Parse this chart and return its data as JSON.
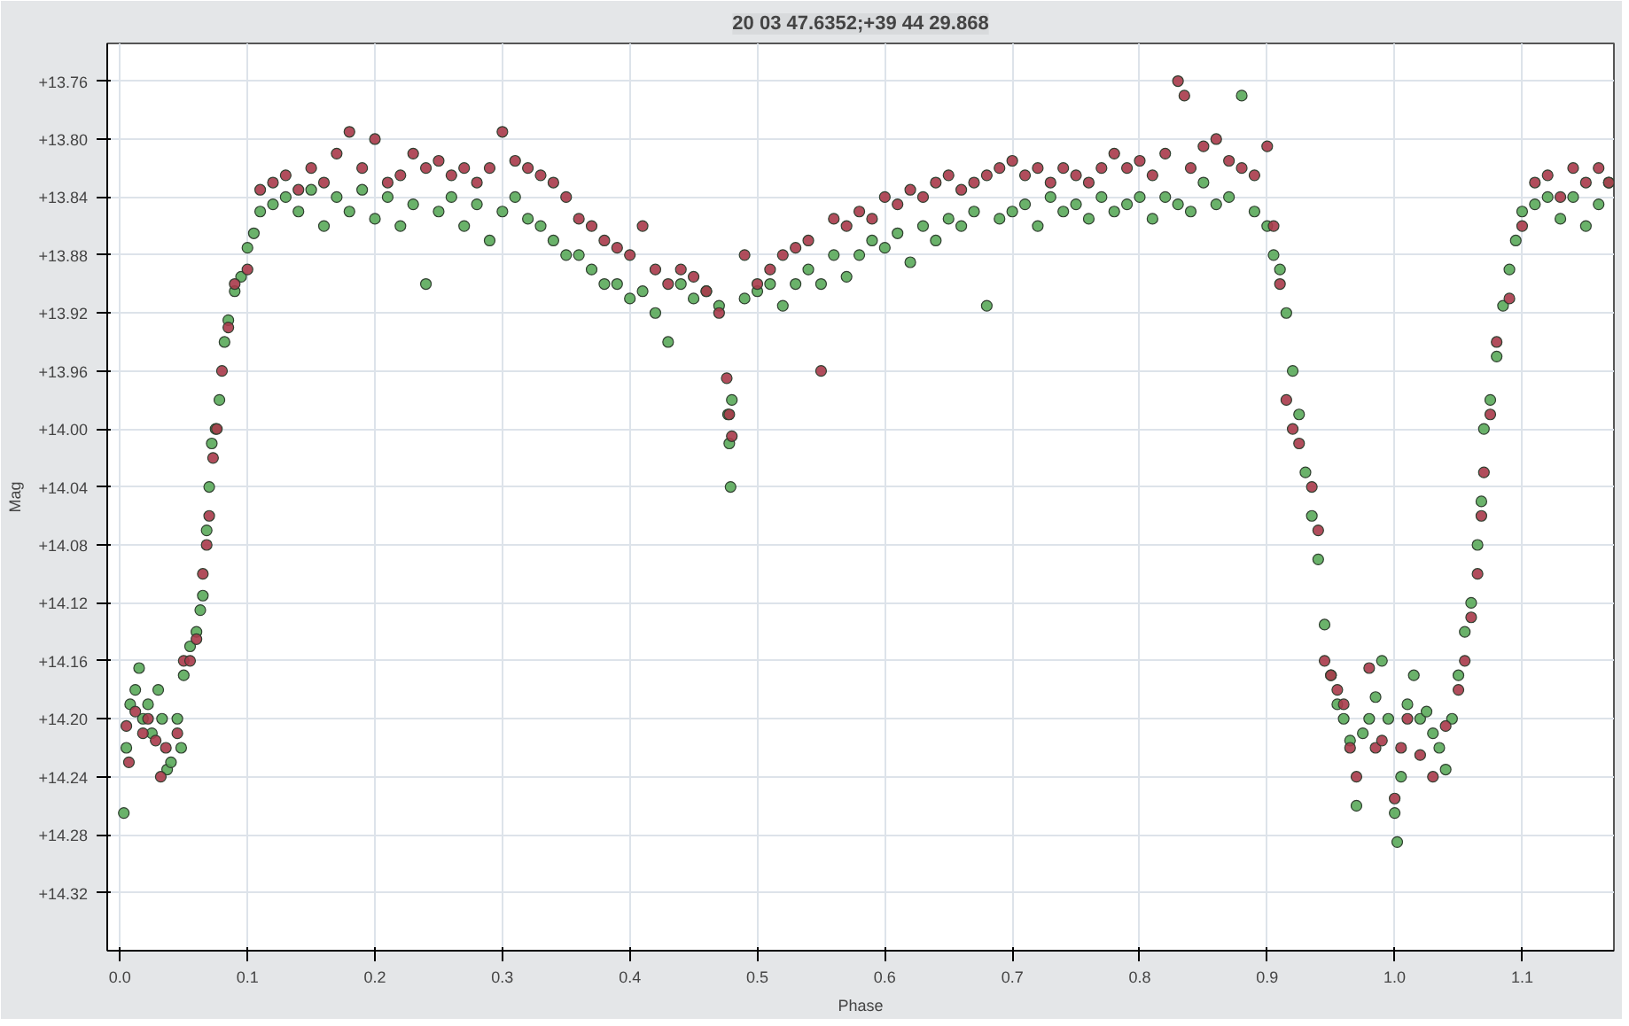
{
  "chart_data": {
    "type": "scatter",
    "title": "20 03 47.6352;+39 44 29.868",
    "xlabel": "Phase",
    "ylabel": "Mag",
    "xlim": [
      -0.01,
      1.172
    ],
    "ylim": [
      14.36,
      13.734
    ],
    "xticks": [
      {
        "value": 0,
        "label": "0.0"
      },
      0.1,
      0.2,
      0.3,
      0.4,
      0.5,
      0.6,
      0.7,
      0.8,
      0.9,
      {
        "value": 1,
        "label": "1.0"
      },
      1.1
    ],
    "yticks": [
      {
        "value": 13.76,
        "label": "+13.76"
      },
      {
        "value": 13.8,
        "label": "+13.80"
      },
      {
        "value": 13.84,
        "label": "+13.84"
      },
      {
        "value": 13.88,
        "label": "+13.88"
      },
      {
        "value": 13.92,
        "label": "+13.92"
      },
      {
        "value": 13.96,
        "label": "+13.96"
      },
      {
        "value": 14.0,
        "label": "+14.00"
      },
      {
        "value": 14.04,
        "label": "+14.04"
      },
      {
        "value": 14.08,
        "label": "+14.08"
      },
      {
        "value": 14.12,
        "label": "+14.12"
      },
      {
        "value": 14.16,
        "label": "+14.16"
      },
      {
        "value": 14.2,
        "label": "+14.20"
      },
      {
        "value": 14.24,
        "label": "+14.24"
      },
      {
        "value": 14.28,
        "label": "+14.28"
      },
      {
        "value": 14.32,
        "label": "+14.32"
      }
    ],
    "grid": true,
    "marker": "circle",
    "series": [
      {
        "color": "#5aaa5a",
        "x": [
          0.003,
          0.005,
          0.008,
          0.012,
          0.015,
          0.018,
          0.022,
          0.025,
          0.03,
          0.033,
          0.037,
          0.04,
          0.045,
          0.048,
          0.05,
          0.055,
          0.06,
          0.063,
          0.065,
          0.068,
          0.07,
          0.072,
          0.075,
          0.078,
          0.082,
          0.085,
          0.09,
          0.095,
          0.1,
          0.105,
          0.11,
          0.12,
          0.13,
          0.14,
          0.15,
          0.16,
          0.17,
          0.18,
          0.19,
          0.2,
          0.21,
          0.22,
          0.23,
          0.24,
          0.25,
          0.26,
          0.27,
          0.28,
          0.29,
          0.3,
          0.31,
          0.32,
          0.33,
          0.34,
          0.35,
          0.36,
          0.37,
          0.38,
          0.39,
          0.4,
          0.41,
          0.42,
          0.43,
          0.44,
          0.45,
          0.46,
          0.47,
          0.477,
          0.478,
          0.479,
          0.48,
          0.49,
          0.5,
          0.51,
          0.52,
          0.53,
          0.54,
          0.55,
          0.56,
          0.57,
          0.58,
          0.59,
          0.6,
          0.61,
          0.62,
          0.63,
          0.64,
          0.65,
          0.66,
          0.67,
          0.68,
          0.69,
          0.7,
          0.71,
          0.72,
          0.73,
          0.74,
          0.75,
          0.76,
          0.77,
          0.78,
          0.79,
          0.8,
          0.81,
          0.82,
          0.83,
          0.84,
          0.85,
          0.86,
          0.87,
          0.88,
          0.89,
          0.9,
          0.905,
          0.91,
          0.915,
          0.92,
          0.925,
          0.93,
          0.935,
          0.94,
          0.945,
          0.95,
          0.955,
          0.96,
          0.965,
          0.97,
          0.975,
          0.98,
          0.985,
          0.99,
          0.995,
          1.0,
          1.002,
          1.005,
          1.01,
          1.015,
          1.02,
          1.025,
          1.03,
          1.035,
          1.04,
          1.045,
          1.05,
          1.055,
          1.06,
          1.065,
          1.068,
          1.07,
          1.075,
          1.08,
          1.085,
          1.09,
          1.095,
          1.1,
          1.11,
          1.12,
          1.13,
          1.14,
          1.15,
          1.16,
          1.168
        ],
        "values": [
          14.265,
          14.22,
          14.19,
          14.18,
          14.165,
          14.2,
          14.19,
          14.21,
          14.18,
          14.2,
          14.235,
          14.23,
          14.2,
          14.22,
          14.17,
          14.15,
          14.14,
          14.125,
          14.115,
          14.07,
          14.04,
          14.01,
          14.0,
          13.98,
          13.94,
          13.925,
          13.905,
          13.895,
          13.875,
          13.865,
          13.85,
          13.845,
          13.84,
          13.85,
          13.835,
          13.86,
          13.84,
          13.85,
          13.835,
          13.855,
          13.84,
          13.86,
          13.845,
          13.9,
          13.85,
          13.84,
          13.86,
          13.845,
          13.87,
          13.85,
          13.84,
          13.855,
          13.86,
          13.87,
          13.88,
          13.88,
          13.89,
          13.9,
          13.9,
          13.91,
          13.905,
          13.92,
          13.94,
          13.9,
          13.91,
          13.905,
          13.915,
          13.99,
          14.01,
          14.04,
          13.98,
          13.91,
          13.905,
          13.9,
          13.915,
          13.9,
          13.89,
          13.9,
          13.88,
          13.895,
          13.88,
          13.87,
          13.875,
          13.865,
          13.885,
          13.86,
          13.87,
          13.855,
          13.86,
          13.85,
          13.915,
          13.855,
          13.85,
          13.845,
          13.86,
          13.84,
          13.85,
          13.845,
          13.855,
          13.84,
          13.85,
          13.845,
          13.84,
          13.855,
          13.84,
          13.845,
          13.85,
          13.83,
          13.845,
          13.84,
          13.77,
          13.85,
          13.86,
          13.88,
          13.89,
          13.92,
          13.96,
          13.99,
          14.03,
          14.06,
          14.09,
          14.135,
          14.17,
          14.19,
          14.2,
          14.215,
          14.26,
          14.21,
          14.2,
          14.185,
          14.16,
          14.2,
          14.265,
          14.285,
          14.24,
          14.19,
          14.17,
          14.2,
          14.195,
          14.21,
          14.22,
          14.235,
          14.2,
          14.17,
          14.14,
          14.12,
          14.08,
          14.05,
          14.0,
          13.98,
          13.95,
          13.915,
          13.89,
          13.87,
          13.85,
          13.845,
          13.84,
          13.855,
          13.84,
          13.86,
          13.845,
          13.83
        ]
      },
      {
        "color": "#a83a4a",
        "x": [
          0.005,
          0.007,
          0.012,
          0.018,
          0.022,
          0.028,
          0.032,
          0.036,
          0.045,
          0.05,
          0.055,
          0.06,
          0.065,
          0.068,
          0.07,
          0.073,
          0.076,
          0.08,
          0.085,
          0.09,
          0.1,
          0.11,
          0.12,
          0.13,
          0.14,
          0.15,
          0.16,
          0.17,
          0.18,
          0.19,
          0.2,
          0.21,
          0.22,
          0.23,
          0.24,
          0.25,
          0.26,
          0.27,
          0.28,
          0.29,
          0.3,
          0.31,
          0.32,
          0.33,
          0.34,
          0.35,
          0.36,
          0.37,
          0.38,
          0.39,
          0.4,
          0.41,
          0.42,
          0.43,
          0.44,
          0.45,
          0.46,
          0.47,
          0.476,
          0.478,
          0.48,
          0.49,
          0.5,
          0.51,
          0.52,
          0.53,
          0.54,
          0.55,
          0.56,
          0.57,
          0.58,
          0.59,
          0.6,
          0.61,
          0.62,
          0.63,
          0.64,
          0.65,
          0.66,
          0.67,
          0.68,
          0.69,
          0.7,
          0.71,
          0.72,
          0.73,
          0.74,
          0.75,
          0.76,
          0.77,
          0.78,
          0.79,
          0.8,
          0.81,
          0.82,
          0.83,
          0.835,
          0.84,
          0.85,
          0.86,
          0.87,
          0.88,
          0.89,
          0.9,
          0.905,
          0.91,
          0.915,
          0.92,
          0.925,
          0.935,
          0.94,
          0.945,
          0.95,
          0.955,
          0.96,
          0.965,
          0.97,
          0.98,
          0.985,
          0.99,
          1.0,
          1.005,
          1.01,
          1.02,
          1.03,
          1.04,
          1.05,
          1.055,
          1.06,
          1.065,
          1.068,
          1.07,
          1.075,
          1.08,
          1.09,
          1.1,
          1.11,
          1.12,
          1.13,
          1.14,
          1.15,
          1.16,
          1.168
        ],
        "values": [
          14.205,
          14.23,
          14.195,
          14.21,
          14.2,
          14.215,
          14.24,
          14.22,
          14.21,
          14.16,
          14.16,
          14.145,
          14.1,
          14.08,
          14.06,
          14.02,
          14.0,
          13.96,
          13.93,
          13.9,
          13.89,
          13.835,
          13.83,
          13.825,
          13.835,
          13.82,
          13.83,
          13.81,
          13.795,
          13.82,
          13.8,
          13.83,
          13.825,
          13.81,
          13.82,
          13.815,
          13.825,
          13.82,
          13.83,
          13.82,
          13.795,
          13.815,
          13.82,
          13.825,
          13.83,
          13.84,
          13.855,
          13.86,
          13.87,
          13.875,
          13.88,
          13.86,
          13.89,
          13.9,
          13.89,
          13.895,
          13.905,
          13.92,
          13.965,
          13.99,
          14.005,
          13.88,
          13.9,
          13.89,
          13.88,
          13.875,
          13.87,
          13.96,
          13.855,
          13.86,
          13.85,
          13.855,
          13.84,
          13.845,
          13.835,
          13.84,
          13.83,
          13.825,
          13.835,
          13.83,
          13.825,
          13.82,
          13.815,
          13.825,
          13.82,
          13.83,
          13.82,
          13.825,
          13.83,
          13.82,
          13.81,
          13.82,
          13.815,
          13.825,
          13.81,
          13.76,
          13.77,
          13.82,
          13.805,
          13.8,
          13.815,
          13.82,
          13.825,
          13.805,
          13.86,
          13.9,
          13.98,
          14.0,
          14.01,
          14.04,
          14.07,
          14.16,
          14.17,
          14.18,
          14.19,
          14.22,
          14.24,
          14.165,
          14.22,
          14.215,
          14.255,
          14.22,
          14.2,
          14.225,
          14.24,
          14.205,
          14.18,
          14.16,
          14.13,
          14.1,
          14.06,
          14.03,
          13.99,
          13.94,
          13.91,
          13.86,
          13.83,
          13.825,
          13.84,
          13.82,
          13.83,
          13.82,
          13.83
        ]
      }
    ]
  }
}
